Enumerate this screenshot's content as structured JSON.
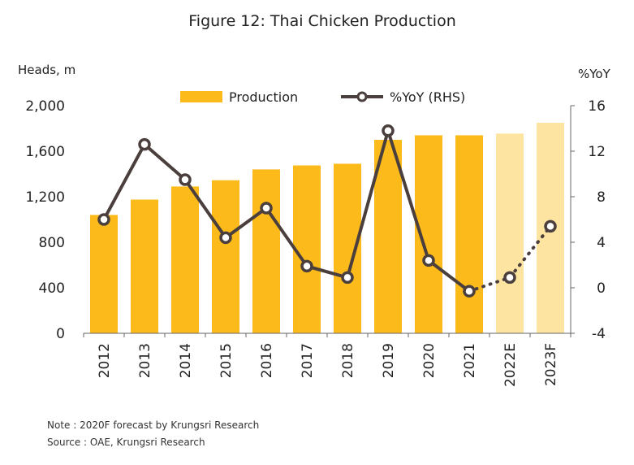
{
  "title": "Figure 12: Thai Chicken Production",
  "left_axis_label": "Heads, m",
  "right_axis_label": "%YoY",
  "legend": {
    "production": "Production",
    "yoy": "%YoY (RHS)"
  },
  "note": "Note : 2020F forecast by Krungsri Research",
  "source": "Source : OAE, Krungsri Research",
  "colors": {
    "bar": "#FDBB1B",
    "bar_forecast": "#FDE4A1",
    "line": "#4A3F3D",
    "marker_fill": "#ffffff"
  },
  "chart_data": {
    "type": "bar",
    "categories": [
      "2012",
      "2013",
      "2014",
      "2015",
      "2016",
      "2017",
      "2018",
      "2019",
      "2020",
      "2021",
      "2022E",
      "2023F"
    ],
    "forecast_categories": [
      "2022E",
      "2023F"
    ],
    "y_left": {
      "label": "Heads, m",
      "ylim": [
        0,
        2000
      ],
      "ticks": [
        0,
        400,
        800,
        1200,
        1600,
        2000
      ],
      "tick_labels": [
        "0",
        "400",
        "800",
        "1,200",
        "1,600",
        "2,000"
      ]
    },
    "y_right": {
      "label": "%YoY",
      "ylim": [
        -4,
        16
      ],
      "ticks": [
        -4,
        0,
        4,
        8,
        12,
        16
      ],
      "tick_labels": [
        "-4",
        "0",
        "4",
        "8",
        "12",
        "16"
      ]
    },
    "series": [
      {
        "name": "Production",
        "type": "bar",
        "axis": "left",
        "values": [
          1040,
          1175,
          1290,
          1345,
          1440,
          1475,
          1490,
          1700,
          1740,
          1740,
          1755,
          1850
        ]
      },
      {
        "name": "%YoY (RHS)",
        "type": "line",
        "axis": "right",
        "values": [
          6.0,
          12.6,
          9.5,
          4.4,
          7.0,
          1.9,
          0.9,
          13.8,
          2.4,
          -0.3,
          0.9,
          5.4
        ],
        "forecast_dotted_from": "2021"
      }
    ],
    "legend_position": "top",
    "grid": false
  }
}
